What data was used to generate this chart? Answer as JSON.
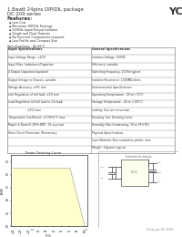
{
  "title_line1": "1.8watt 24pins DIP/DIL package",
  "title_brand": "YCL",
  "title_line2": "DC-200 series",
  "section_features": "Features:",
  "features": [
    "Low Cost",
    "Miniature DIP/DIL Package",
    "500Vdc Input/Output Isolation",
    "Single and Dual Outputs",
    "No External Components required",
    "Low Profile and Compact Size"
  ],
  "spec_header": "Specifications:   At 25°C",
  "spec_left": [
    [
      "Input Specifications",
      "General Specifications"
    ],
    [
      "Input Voltage Range: ±10%",
      "Isolation Voltage: 500VE"
    ],
    [
      "Input Filter, Inductance/Capacitor",
      "Efficiency: variable"
    ],
    [
      "4 Output Capacitors(optional)",
      "Switching Frequency: 200Hz typical"
    ],
    [
      "Output Voltage to Chassis: variable",
      "Isolation Resistance: 1000MΩ ohms"
    ],
    [
      "Voltage Accuracy: ±5% min",
      "Environmental Specifications"
    ],
    [
      "Line Regulation of full load: ±1% min",
      "Operating Temperature: -20 to +71°C"
    ],
    [
      "Load Regulation (of full load to 1/4 load)",
      "Storage Temperature: -40 to +105°C"
    ],
    [
      "                     ±5% max",
      "Cooling: Free air convection"
    ],
    [
      "Temperature Coefficient: ±0.05%/°C max",
      "Derating: See Derating Curve"
    ],
    [
      "Ripple & Noise(0-20Hz BW): 1% p-p max",
      "Humidity: Non-Condensing, 30 to 95% RH"
    ],
    [
      "Short Circuit Protection: Momentary",
      "Physical Specifications"
    ],
    [
      "",
      "Case Material: Non-conduction plastic case"
    ],
    [
      "",
      "Weight: 12grams typical"
    ]
  ],
  "graph_title": "Power Derating Curve",
  "graph_xlabel": "T(°C)",
  "graph_ylabel": "Po(W)",
  "graph_fill_color": "#ffffcc",
  "graph_line_color": "#aaaaaa",
  "circuit_title": "Schematic for dual pin",
  "circuit_bg": "#ffff99",
  "page_num": "6",
  "footer": "Friday Jan 07, 2000",
  "bg_color": "#ffffff",
  "text_color": "#333333",
  "table_border_color": "#888888"
}
